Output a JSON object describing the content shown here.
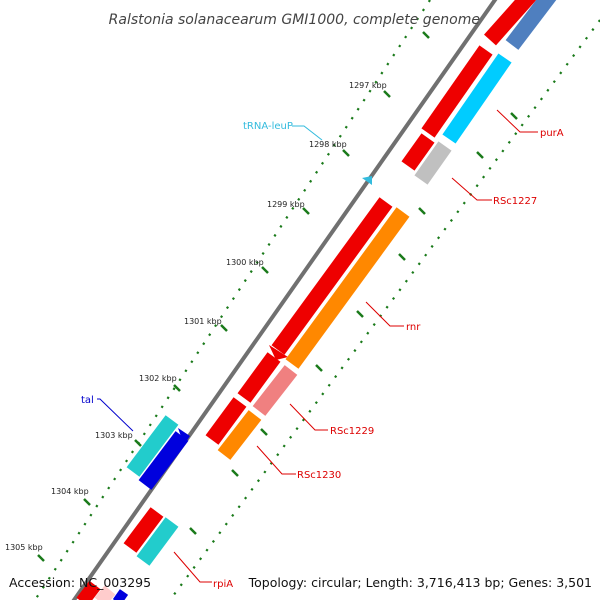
{
  "header": {
    "title": "Ralstonia solanacearum GMI1000, complete genome"
  },
  "footer": {
    "accession": "Accession: NC_003295",
    "topology": "Topology: circular; Length: 3,716,413 bp; Genes: 3,501"
  },
  "ticks": [
    "1297 kbp",
    "1298 kbp",
    "1299 kbp",
    "1300 kbp",
    "1301 kbp",
    "1302 kbp",
    "1303 kbp",
    "1304 kbp",
    "1305 kbp"
  ],
  "gene_labels": {
    "purA": "purA",
    "rsc1227": "RSc1227",
    "rnr": "rnr",
    "rsc1229": "RSc1229",
    "rsc1230": "RSc1230",
    "rpiA": "rpiA",
    "tal": "tal",
    "trna_leup": "tRNA-leuP"
  },
  "colors": {
    "red": "#ee0000",
    "orange": "#ff8800",
    "cyan": "#00ccff",
    "teal": "#22cccc",
    "blue": "#0000dd",
    "steelblue": "#4f7fbf",
    "silver": "#c0c0c0",
    "pink": "#f08080",
    "dots": "#1a7a1a",
    "backbone": "#808080",
    "label_red": "#dd0000",
    "label_blue": "#0000cc",
    "label_cyan": "#33bbdd"
  }
}
